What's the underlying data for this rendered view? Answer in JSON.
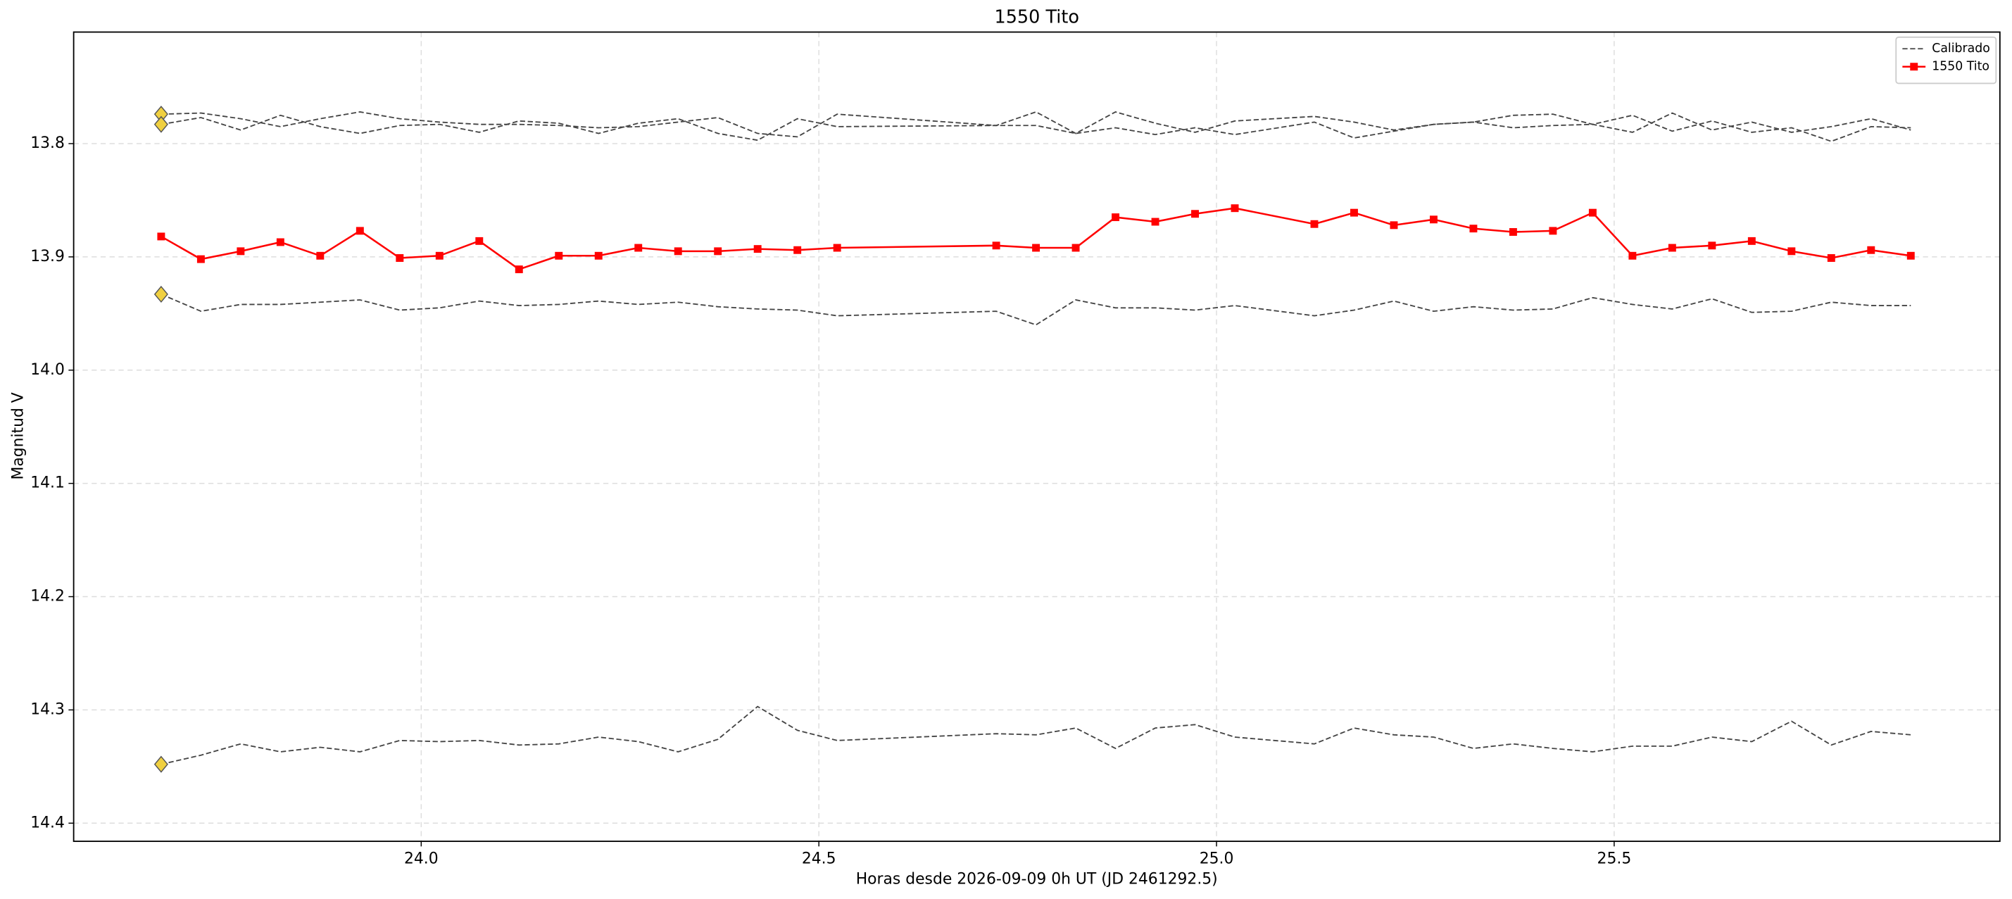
{
  "chart_data": {
    "type": "line",
    "title": "1550 Tito",
    "xlabel": "Horas desde 2026-09-09 0h UT (JD 2461292.5)",
    "ylabel": "Magnitud V",
    "x": [
      23.673,
      23.723,
      23.773,
      23.823,
      23.873,
      23.923,
      23.973,
      24.023,
      24.073,
      24.123,
      24.173,
      24.223,
      24.273,
      24.323,
      24.373,
      24.423,
      24.473,
      24.523,
      24.723,
      24.773,
      24.823,
      24.873,
      24.923,
      24.973,
      25.023,
      25.123,
      25.173,
      25.223,
      25.273,
      25.323,
      25.373,
      25.423,
      25.473,
      25.523,
      25.573,
      25.623,
      25.673,
      25.723,
      25.773,
      25.823,
      25.873
    ],
    "series": [
      {
        "name": "Calibrado",
        "color": "#444444",
        "dashed": true,
        "start_marker": true,
        "values": [
          13.774,
          13.773,
          13.778,
          13.785,
          13.778,
          13.772,
          13.778,
          13.781,
          13.783,
          13.783,
          13.784,
          13.786,
          13.785,
          13.781,
          13.777,
          13.791,
          13.794,
          13.774,
          13.784,
          13.772,
          13.791,
          13.772,
          13.782,
          13.79,
          13.78,
          13.776,
          13.781,
          13.788,
          13.783,
          13.781,
          13.775,
          13.774,
          13.783,
          13.775,
          13.789,
          13.78,
          13.79,
          13.786,
          13.798,
          13.785,
          13.786
        ]
      },
      {
        "color": "#444444",
        "dashed": true,
        "start_marker": true,
        "values": [
          13.783,
          13.777,
          13.788,
          13.775,
          13.785,
          13.791,
          13.784,
          13.783,
          13.79,
          13.78,
          13.782,
          13.791,
          13.782,
          13.778,
          13.791,
          13.797,
          13.778,
          13.785,
          13.784,
          13.784,
          13.791,
          13.786,
          13.792,
          13.786,
          13.792,
          13.781,
          13.795,
          13.789,
          13.783,
          13.781,
          13.786,
          13.784,
          13.783,
          13.79,
          13.773,
          13.788,
          13.781,
          13.79,
          13.785,
          13.778,
          13.788
        ]
      },
      {
        "color": "#444444",
        "dashed": true,
        "start_marker": true,
        "values": [
          13.933,
          13.948,
          13.942,
          13.942,
          13.94,
          13.938,
          13.947,
          13.945,
          13.939,
          13.943,
          13.942,
          13.939,
          13.942,
          13.94,
          13.944,
          13.946,
          13.947,
          13.952,
          13.948,
          13.96,
          13.938,
          13.945,
          13.945,
          13.947,
          13.943,
          13.952,
          13.947,
          13.939,
          13.948,
          13.944,
          13.947,
          13.946,
          13.936,
          13.942,
          13.946,
          13.937,
          13.949,
          13.948,
          13.94,
          13.943,
          13.943
        ]
      },
      {
        "color": "#444444",
        "dashed": true,
        "start_marker": true,
        "values": [
          14.348,
          14.34,
          14.33,
          14.337,
          14.333,
          14.337,
          14.327,
          14.328,
          14.327,
          14.331,
          14.33,
          14.324,
          14.328,
          14.337,
          14.326,
          14.297,
          14.318,
          14.327,
          14.321,
          14.322,
          14.316,
          14.334,
          14.316,
          14.313,
          14.324,
          14.33,
          14.316,
          14.322,
          14.324,
          14.334,
          14.33,
          14.334,
          14.337,
          14.332,
          14.332,
          14.324,
          14.328,
          14.31,
          14.331,
          14.319,
          14.322
        ]
      },
      {
        "name": "1550 Tito",
        "color": "#ff0000",
        "marker": "square",
        "values": [
          13.882,
          13.902,
          13.895,
          13.887,
          13.899,
          13.877,
          13.901,
          13.899,
          13.886,
          13.911,
          13.899,
          13.899,
          13.892,
          13.895,
          13.895,
          13.893,
          13.894,
          13.892,
          13.89,
          13.892,
          13.892,
          13.865,
          13.869,
          13.862,
          13.857,
          13.871,
          13.861,
          13.872,
          13.867,
          13.875,
          13.878,
          13.877,
          13.861,
          13.899,
          13.892,
          13.89,
          13.886,
          13.895,
          13.901,
          13.894,
          13.899
        ]
      }
    ],
    "start_marker_color": "#f0d040",
    "xlim": [
      23.563,
      25.985
    ],
    "ylim": [
      13.7015,
      14.416
    ],
    "y_inverted": true,
    "xticks": [
      {
        "value": 24,
        "label": "24.0"
      },
      24.5,
      {
        "value": 25,
        "label": "25.0"
      },
      25.5
    ],
    "yticks": [
      13.8,
      13.9,
      {
        "value": 14,
        "label": "14.0"
      },
      14.1,
      14.2,
      14.3,
      14.4
    ],
    "grid": true,
    "legend": "upper right"
  }
}
